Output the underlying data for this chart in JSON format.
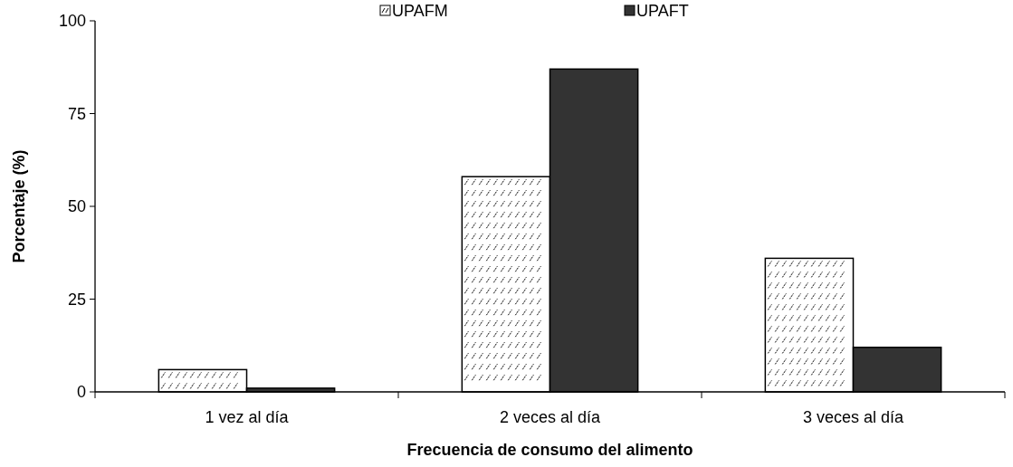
{
  "chart_data": {
    "type": "bar",
    "xlabel": "Frecuencia de consumo del alimento",
    "ylabel": "Porcentaje (%)",
    "categories": [
      "1 vez al día",
      "2 veces al día",
      "3 veces al día"
    ],
    "series": [
      {
        "name": "UPAFM",
        "color": "#ffffff",
        "values": [
          6,
          58,
          36
        ]
      },
      {
        "name": "UPAFT",
        "color": "#333333",
        "values": [
          1,
          87,
          12
        ]
      }
    ],
    "ylim": [
      0,
      100
    ],
    "yticks": [
      0,
      25,
      50,
      75,
      100
    ],
    "grid": false,
    "legend": "top"
  }
}
